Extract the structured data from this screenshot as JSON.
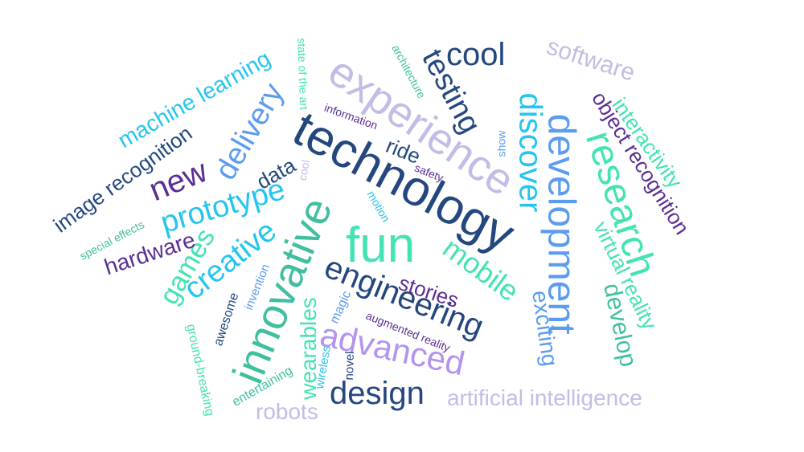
{
  "palette": {
    "navy": "#23477e",
    "sky": "#5b9bf0",
    "cyan": "#24c5ee",
    "mint": "#43e3b4",
    "teal": "#3fbfa0",
    "lavender": "#c1bde5",
    "purple": "#5a2e93",
    "violet": "#b294f0"
  },
  "words": [
    {
      "text": "technology",
      "color": "#23477e"
    },
    {
      "text": "experience",
      "color": "#c1bde5"
    },
    {
      "text": "fun",
      "color": "#43e3b4"
    },
    {
      "text": "development",
      "color": "#5b9bf0"
    },
    {
      "text": "research",
      "color": "#43e3b4"
    },
    {
      "text": "innovative",
      "color": "#3fbfa0"
    },
    {
      "text": "engineering",
      "color": "#23477e"
    },
    {
      "text": "advanced",
      "color": "#b294f0"
    },
    {
      "text": "discover",
      "color": "#24c5ee"
    },
    {
      "text": "prototype",
      "color": "#24c5ee"
    },
    {
      "text": "testing",
      "color": "#23477e"
    },
    {
      "text": "cool",
      "color": "#23477e"
    },
    {
      "text": "delivery",
      "color": "#5b9bf0"
    },
    {
      "text": "new",
      "color": "#5a2e93"
    },
    {
      "text": "creative",
      "color": "#24c5ee"
    },
    {
      "text": "games",
      "color": "#43e3b4"
    },
    {
      "text": "mobile",
      "color": "#43e3b4"
    },
    {
      "text": "design",
      "color": "#23477e"
    },
    {
      "text": "machine learning",
      "color": "#24c5ee"
    },
    {
      "text": "image recognition",
      "color": "#23477e"
    },
    {
      "text": "object recognition",
      "color": "#5a2e93"
    },
    {
      "text": "software",
      "color": "#c1bde5"
    },
    {
      "text": "interactivity",
      "color": "#43e3b4"
    },
    {
      "text": "virtual reality",
      "color": "#43e3b4"
    },
    {
      "text": "develop",
      "color": "#3fbfa0"
    },
    {
      "text": "exciting",
      "color": "#5b9bf0"
    },
    {
      "text": "stories",
      "color": "#5a2e93"
    },
    {
      "text": "artificial intelligence",
      "color": "#c1bde5"
    },
    {
      "text": "robots",
      "color": "#c1bde5"
    },
    {
      "text": "wearables",
      "color": "#43e3b4"
    },
    {
      "text": "hardware",
      "color": "#5a2e93"
    },
    {
      "text": "data",
      "color": "#23477e"
    },
    {
      "text": "ride",
      "color": "#23477e"
    },
    {
      "text": "safety",
      "color": "#5a2e93"
    },
    {
      "text": "information",
      "color": "#5a2e93"
    },
    {
      "text": "state of the art",
      "color": "#43e3b4"
    },
    {
      "text": "architecture",
      "color": "#3fbfa0"
    },
    {
      "text": "show",
      "color": "#5b9bf0"
    },
    {
      "text": "cool",
      "color": "#c1bde5"
    },
    {
      "text": "motion",
      "color": "#24c5ee"
    },
    {
      "text": "special effects",
      "color": "#3fbfa0"
    },
    {
      "text": "invention",
      "color": "#5b9bf0"
    },
    {
      "text": "awesome",
      "color": "#23477e"
    },
    {
      "text": "ground-breaking",
      "color": "#43e3b4"
    },
    {
      "text": "magic",
      "color": "#5b9bf0"
    },
    {
      "text": "augmented reality",
      "color": "#5a2e93"
    },
    {
      "text": "wireless",
      "color": "#24c5ee"
    },
    {
      "text": "novel",
      "color": "#23477e"
    },
    {
      "text": "entertaining",
      "color": "#3fbfa0"
    }
  ]
}
